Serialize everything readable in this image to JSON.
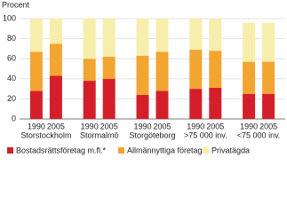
{
  "chart_data": {
    "type": "stacked_bar",
    "y_label": "Procent",
    "categories": [
      "1990",
      "2005",
      "1990",
      "2005",
      "1990",
      "2005",
      "1990",
      "2005",
      "1990",
      "2005"
    ],
    "groups": [
      "Storstockholm",
      "Stormalmö",
      "Storgöteborg",
      ">75 000 inv.",
      "<75 000 inv."
    ],
    "series": [
      {
        "name": "Bostadsrättsföretag m.fl.*",
        "color": "#d41f2b",
        "values": [
          28,
          43,
          38,
          40,
          24,
          28,
          30,
          31,
          25,
          25
        ]
      },
      {
        "name": "Allmännyttiga företag",
        "color": "#f2a531",
        "values": [
          39,
          32,
          22,
          22,
          39,
          39,
          39,
          37,
          32,
          32
        ]
      },
      {
        "name": "Privatägda",
        "color": "#f8eeac",
        "values": [
          33,
          25,
          40,
          38,
          37,
          33,
          31,
          32,
          39,
          39
        ]
      }
    ],
    "ylim": [
      0,
      100
    ],
    "yticks": [
      0,
      20,
      40,
      60,
      80,
      100
    ],
    "grid": true
  }
}
